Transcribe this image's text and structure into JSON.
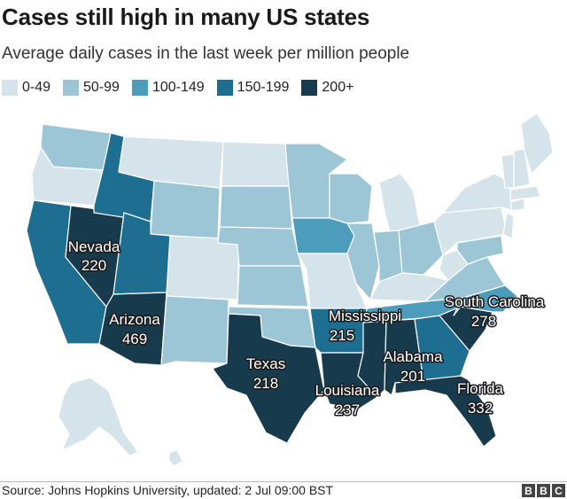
{
  "title": "Cases still high in many US states",
  "subtitle": "Average daily cases in the last week per million people",
  "legend": [
    {
      "label": "0-49",
      "color": "#d4e4ea"
    },
    {
      "label": "50-99",
      "color": "#9cc6d6"
    },
    {
      "label": "100-149",
      "color": "#4c9dbc"
    },
    {
      "label": "150-199",
      "color": "#1d6e91"
    },
    {
      "label": "200+",
      "color": "#173b4c"
    }
  ],
  "labels": {
    "nevada": {
      "name": "Nevada",
      "value": "220"
    },
    "arizona": {
      "name": "Arizona",
      "value": "469"
    },
    "texas": {
      "name": "Texas",
      "value": "218"
    },
    "mississippi": {
      "name": "Mississippi",
      "value": "215"
    },
    "louisiana": {
      "name": "Louisiana",
      "value": "237"
    },
    "alabama": {
      "name": "Alabama",
      "value": "201"
    },
    "south_carolina": {
      "name": "South Carolina",
      "value": "278"
    },
    "florida": {
      "name": "Florida",
      "value": "332"
    }
  },
  "footer": {
    "source": "Source: Johns Hopkins University, updated: 2 Jul 09:00 BST",
    "logo": [
      "B",
      "B",
      "C"
    ]
  }
}
